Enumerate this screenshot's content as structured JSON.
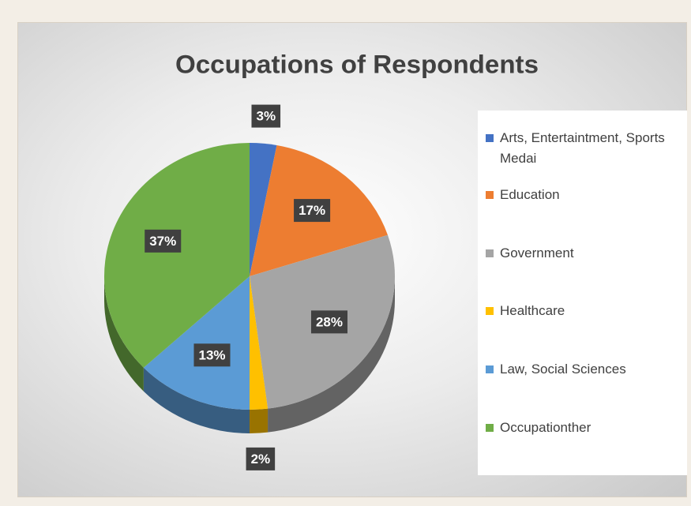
{
  "chart_data": {
    "type": "pie",
    "title": "Occupations of Respondents",
    "categories": [
      "Arts, Entertaintment, Sports Medai",
      "Education",
      "Government",
      "Healthcare",
      "Law, Social Sciences",
      "Occupationther"
    ],
    "values": [
      3,
      17,
      28,
      2,
      13,
      37
    ],
    "value_labels": [
      "3%",
      "17%",
      "28%",
      "2%",
      "13%",
      "37%"
    ],
    "colors": [
      "#4472c4",
      "#ed7d31",
      "#a5a5a5",
      "#ffc000",
      "#5b9bd5",
      "#70ad47"
    ],
    "legend": "right"
  }
}
